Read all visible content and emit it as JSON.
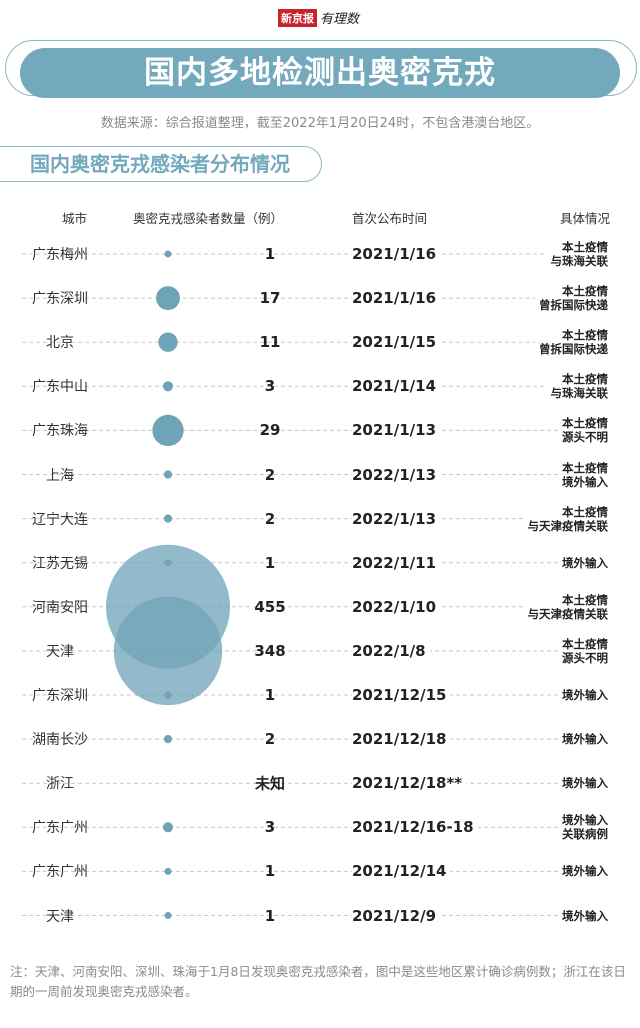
{
  "logo": {
    "brand": "新京报",
    "column": "有理数"
  },
  "title": "国内多地检测出奥密克戎",
  "source": "数据来源：综合报道整理，截至2022年1月20日24时，不包含港澳台地区。",
  "subtitle": "国内奥密克戎感染者分布情况",
  "colors": {
    "accent": "#73a9bd",
    "bubble": "#6fa3b8"
  },
  "chart_data": {
    "type": "bubble",
    "columns": [
      "城市",
      "奥密克戎感染者数量（例）",
      "首次公布时间",
      "具体情况"
    ],
    "rows": [
      {
        "city": "广东梅州",
        "count": 1,
        "count_label": "1",
        "date": "2021/1/16",
        "desc": [
          "本土疫情",
          "与珠海关联"
        ]
      },
      {
        "city": "广东深圳",
        "count": 17,
        "count_label": "17",
        "date": "2021/1/16",
        "desc": [
          "本土疫情",
          "曾拆国际快递"
        ]
      },
      {
        "city": "北京",
        "count": 11,
        "count_label": "11",
        "date": "2021/1/15",
        "desc": [
          "本土疫情",
          "曾拆国际快递"
        ]
      },
      {
        "city": "广东中山",
        "count": 3,
        "count_label": "3",
        "date": "2021/1/14",
        "desc": [
          "本土疫情",
          "与珠海关联"
        ]
      },
      {
        "city": "广东珠海",
        "count": 29,
        "count_label": "29",
        "date": "2021/1/13",
        "desc": [
          "本土疫情",
          "源头不明"
        ]
      },
      {
        "city": "上海",
        "count": 2,
        "count_label": "2",
        "date": "2022/1/13",
        "desc": [
          "本土疫情",
          "境外输入"
        ]
      },
      {
        "city": "辽宁大连",
        "count": 2,
        "count_label": "2",
        "date": "2022/1/13",
        "desc": [
          "本土疫情",
          "与天津疫情关联"
        ]
      },
      {
        "city": "江苏无锡",
        "count": 1,
        "count_label": "1",
        "date": "2022/1/11",
        "desc": [
          "境外输入"
        ]
      },
      {
        "city": "河南安阳",
        "count": 455,
        "count_label": "455",
        "date": "2022/1/10",
        "desc": [
          "本土疫情",
          "与天津疫情关联"
        ]
      },
      {
        "city": "天津",
        "count": 348,
        "count_label": "348",
        "date": "2022/1/8",
        "desc": [
          "本土疫情",
          "源头不明"
        ]
      },
      {
        "city": "广东深圳",
        "count": 1,
        "count_label": "1",
        "date": "2021/12/15",
        "desc": [
          "境外输入"
        ]
      },
      {
        "city": "湖南长沙",
        "count": 2,
        "count_label": "2",
        "date": "2021/12/18",
        "desc": [
          "境外输入"
        ]
      },
      {
        "city": "浙江",
        "count": null,
        "count_label": "未知",
        "date": "2021/12/18**",
        "desc": [
          "境外输入"
        ]
      },
      {
        "city": "广东广州",
        "count": 3,
        "count_label": "3",
        "date": "2021/12/16-18",
        "desc": [
          "境外输入",
          "关联病例"
        ]
      },
      {
        "city": "广东广州",
        "count": 1,
        "count_label": "1",
        "date": "2021/12/14",
        "desc": [
          "境外输入"
        ]
      },
      {
        "city": "天津",
        "count": 1,
        "count_label": "1",
        "date": "2021/12/9",
        "desc": [
          "境外输入"
        ]
      }
    ]
  },
  "note": "注：天津、河南安阳、深圳、珠海于1月8日发现奥密克戎感染者，图中是这些地区累计确诊病例数；浙江在该日期的一周前发现奥密克戎感染者。"
}
